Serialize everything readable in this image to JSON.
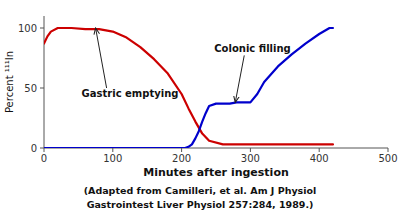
{
  "chart_data": {
    "type": "line",
    "x_label": "Minutes after ingestion",
    "y_label": "Percent ¹¹¹In",
    "series": [
      {
        "color": "#cc0000",
        "x": [
          0,
          5,
          10,
          20,
          30,
          40,
          60,
          80,
          100,
          120,
          140,
          160,
          180,
          200,
          210,
          220,
          230,
          240,
          260,
          280,
          300,
          320,
          350,
          400,
          420
        ],
        "values": [
          87,
          93,
          97,
          100,
          100,
          100,
          99,
          99,
          97,
          92,
          84,
          74,
          62,
          45,
          33,
          22,
          12,
          6,
          3,
          3,
          3,
          3,
          3,
          3,
          3
        ]
      },
      {
        "color": "#0000cc",
        "x": [
          0,
          100,
          180,
          200,
          205,
          210,
          215,
          220,
          225,
          230,
          235,
          240,
          250,
          260,
          270,
          280,
          290,
          300,
          310,
          320,
          340,
          360,
          380,
          400,
          415,
          420
        ],
        "values": [
          0,
          0,
          0,
          0,
          0,
          1,
          3,
          8,
          14,
          22,
          29,
          35,
          37,
          37,
          37,
          38,
          38,
          38,
          45,
          55,
          68,
          78,
          87,
          95,
          100,
          100
        ]
      }
    ],
    "xlim": [
      0,
      500
    ],
    "ylim": [
      0,
      110
    ],
    "xticks": [
      0,
      100,
      200,
      300,
      400,
      500
    ],
    "yticks": [
      0,
      50,
      100
    ],
    "grid": false,
    "annotations": [
      {
        "text": "Gastric emptying",
        "x": 75,
        "y": 100
      },
      {
        "text": "Colonic filling",
        "x": 278,
        "y": 38
      }
    ],
    "caption": [
      "(Adapted from Camilleri, et al. Am J Physiol",
      "Gastrointest Liver Physiol 257:284, 1989.)"
    ]
  }
}
